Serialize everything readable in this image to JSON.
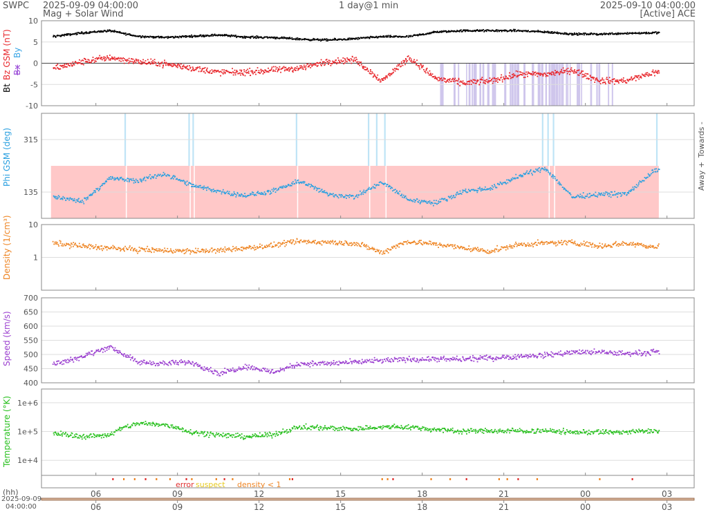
{
  "header": {
    "org": "SWPC",
    "start_time": "2025-09-09 04:00:00",
    "subtitle": "Mag + Solar Wind",
    "resolution": "1 day@1 min",
    "end_time": "2025-09-10 04:00:00",
    "source": "[Active] ACE"
  },
  "colors": {
    "bt": "#000000",
    "bz": "#e8282d",
    "by": "#3aa6e6",
    "bx": "#9b4dd8",
    "phi": "#2ba0e0",
    "density": "#ee8524",
    "speed": "#9a3ecf",
    "temperature": "#28c01e",
    "error": "#e03030",
    "suspect": "#e6c91e",
    "density_lt1": "#ee8524",
    "frame": "#888888",
    "grid": "#dddddd",
    "bz_south_shade": "#cfc6ec",
    "phi_away_fill": "#ffc8c8",
    "phi_towards_fill": "#bfe4f6"
  },
  "legend": {
    "mag": {
      "bt": "Bt",
      "bz": "Bz GSM (nT)",
      "bx": "Bx",
      "by": "By"
    },
    "quality": {
      "error": "error",
      "suspect": "suspect",
      "density_lt1": "density < 1"
    }
  },
  "phi_side": {
    "towards": "Towards -",
    "away": "Away +"
  },
  "time_axis": {
    "hours_label": "(hh)",
    "date_label": "2025-09-09",
    "time_label": "04:00:00",
    "ticks": [
      "06",
      "09",
      "12",
      "15",
      "18",
      "21",
      "00",
      "03"
    ]
  },
  "chart_data": [
    {
      "type": "scatter",
      "title": "",
      "ylabel": "Bt / Bz GSM (nT)",
      "ylim": [
        -10,
        10
      ],
      "yticks": [
        "10",
        "5",
        "0",
        "-5",
        "-10"
      ],
      "xlim_hours": [
        4,
        28
      ],
      "series": [
        {
          "name": "Bt",
          "x": [
            4.5,
            5.5,
            6.5,
            7.5,
            8.5,
            9.5,
            10.5,
            11.5,
            12.5,
            13.5,
            14.5,
            15.5,
            16.5,
            17.5,
            18.5,
            19.5,
            20.5,
            21.5,
            22.5,
            23.5,
            24.5,
            25.5,
            26.5
          ],
          "y": [
            6.5,
            7.3,
            7.8,
            6.5,
            6.2,
            6.5,
            6.8,
            6.3,
            6.2,
            5.8,
            5.6,
            5.9,
            6.4,
            6.4,
            7.5,
            7.8,
            7.8,
            7.8,
            7.5,
            7.0,
            7.0,
            7.2,
            7.3
          ]
        },
        {
          "name": "Bz GSM (nT)",
          "x": [
            4.5,
            5.5,
            6.5,
            7.5,
            8.5,
            9.5,
            10.5,
            11.5,
            12.5,
            13.5,
            14.5,
            15.5,
            16.5,
            17.5,
            18.5,
            19.5,
            20.5,
            21.5,
            22.5,
            23.5,
            24.5,
            25.5,
            26.5
          ],
          "y": [
            -1.0,
            0.5,
            1.5,
            0.5,
            0.0,
            -1.0,
            -2.0,
            -2.0,
            -1.5,
            -1.0,
            0.5,
            1.0,
            -4.0,
            1.5,
            -3.5,
            -4.5,
            -4.0,
            -2.5,
            -2.5,
            -1.5,
            -4.0,
            -4.0,
            -2.0
          ]
        }
      ]
    },
    {
      "type": "scatter",
      "title": "",
      "ylabel": "Phi GSM (deg)",
      "ylim": [
        45,
        405
      ],
      "yticks": [
        "315",
        "135"
      ],
      "xlim_hours": [
        4,
        28
      ],
      "series": [
        {
          "name": "Phi GSM (deg)",
          "x": [
            4.5,
            5.5,
            6.5,
            7.5,
            8.5,
            9.5,
            10.5,
            11.5,
            12.5,
            13.5,
            14.5,
            15.5,
            16.5,
            17.5,
            18.5,
            19.5,
            20.5,
            21.5,
            22.5,
            23.5,
            24.5,
            25.5,
            26.5
          ],
          "y": [
            120,
            105,
            185,
            175,
            200,
            160,
            140,
            125,
            140,
            175,
            130,
            120,
            170,
            110,
            100,
            140,
            150,
            190,
            220,
            120,
            130,
            130,
            210
          ]
        }
      ]
    },
    {
      "type": "scatter",
      "title": "",
      "ylabel": "Density (1/cm³)",
      "yscale": "log",
      "ylim": [
        0.1,
        10
      ],
      "yticks": [
        "10",
        "1"
      ],
      "xlim_hours": [
        4,
        28
      ],
      "series": [
        {
          "name": "Density (1/cm³)",
          "x": [
            4.5,
            5.5,
            6.5,
            7.5,
            8.5,
            9.5,
            10.5,
            11.5,
            12.5,
            13.5,
            14.5,
            15.5,
            16.5,
            17.5,
            18.5,
            19.5,
            20.5,
            21.5,
            22.5,
            23.5,
            24.5,
            25.5,
            26.5
          ],
          "y": [
            2.8,
            2.3,
            2.0,
            1.8,
            1.7,
            1.6,
            1.7,
            2.0,
            2.4,
            3.2,
            3.0,
            2.8,
            1.4,
            3.2,
            2.6,
            2.0,
            1.6,
            2.5,
            2.8,
            3.0,
            2.3,
            2.8,
            2.2
          ]
        }
      ]
    },
    {
      "type": "scatter",
      "title": "",
      "ylabel": "Speed (km/s)",
      "ylim": [
        400,
        700
      ],
      "yticks": [
        "700",
        "650",
        "600",
        "550",
        "500",
        "450",
        "400"
      ],
      "xlim_hours": [
        4,
        28
      ],
      "series": [
        {
          "name": "Speed (km/s)",
          "x": [
            4.5,
            5.5,
            6.5,
            7.5,
            8.5,
            9.5,
            10.5,
            11.5,
            12.5,
            13.5,
            14.5,
            15.5,
            16.5,
            17.5,
            18.5,
            19.5,
            20.5,
            21.5,
            22.5,
            23.5,
            24.5,
            25.5,
            26.5
          ],
          "y": [
            470,
            495,
            530,
            475,
            470,
            475,
            435,
            460,
            440,
            470,
            470,
            475,
            480,
            485,
            485,
            485,
            490,
            495,
            500,
            510,
            510,
            505,
            510
          ]
        }
      ]
    },
    {
      "type": "scatter",
      "title": "",
      "ylabel": "Temperature (°K)",
      "yscale": "log",
      "ylim": [
        3000,
        3000000
      ],
      "yticks": [
        "1e+6",
        "1e+5",
        "1e+4"
      ],
      "xlim_hours": [
        4,
        28
      ],
      "series": [
        {
          "name": "Temperature (°K)",
          "x": [
            4.5,
            5.5,
            6.5,
            7.5,
            8.5,
            9.5,
            10.5,
            11.5,
            12.5,
            13.5,
            14.5,
            15.5,
            16.5,
            17.5,
            18.5,
            19.5,
            20.5,
            21.5,
            22.5,
            23.5,
            24.5,
            25.5,
            26.5
          ],
          "y": [
            90000,
            70000,
            80000,
            200000,
            180000,
            100000,
            80000,
            70000,
            80000,
            150000,
            140000,
            130000,
            150000,
            150000,
            120000,
            110000,
            110000,
            110000,
            110000,
            100000,
            100000,
            100000,
            110000
          ]
        }
      ]
    }
  ]
}
